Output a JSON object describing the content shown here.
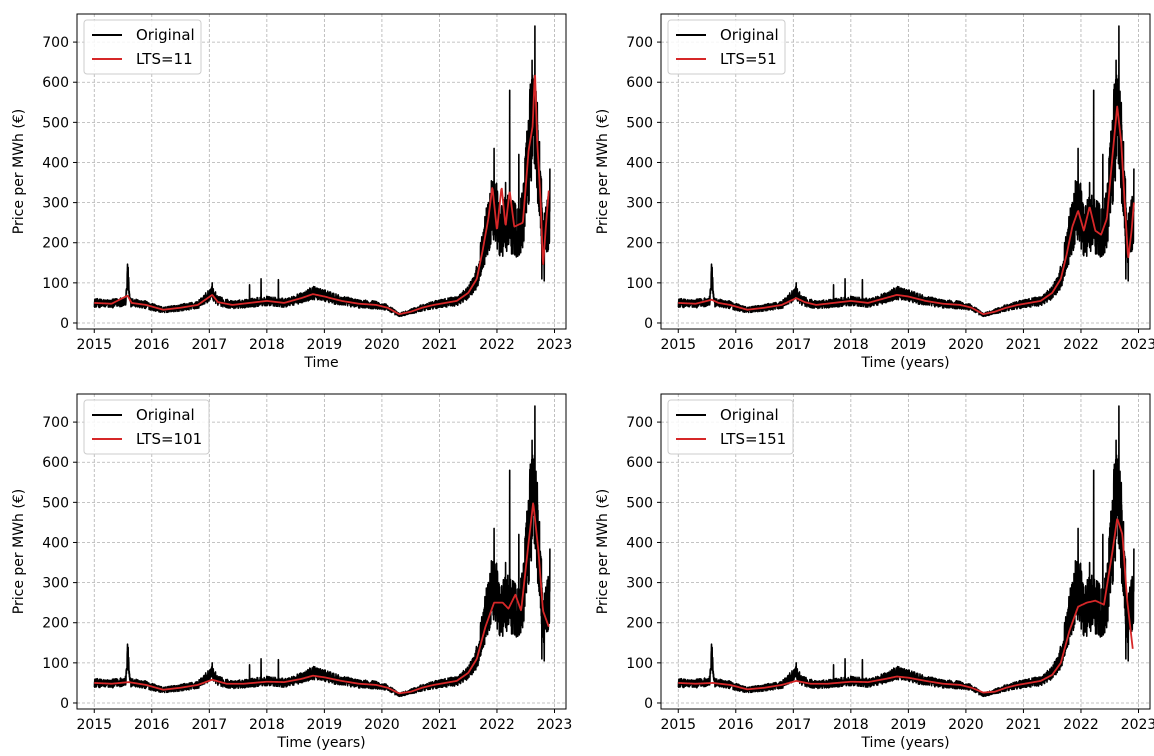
{
  "chart_data": [
    {
      "type": "line",
      "xlabel": "Time",
      "ylabel": "Price per MWh (€)",
      "xlim": [
        2014.7,
        2023.2
      ],
      "ylim": [
        -15,
        770
      ],
      "xticks": [
        "2015",
        "2016",
        "2017",
        "2018",
        "2019",
        "2020",
        "2021",
        "2022",
        "2023"
      ],
      "yticks": [
        "0",
        "100",
        "200",
        "300",
        "400",
        "500",
        "600",
        "700"
      ],
      "grid": true,
      "legend_position": "top-left",
      "series": [
        {
          "name": "Original",
          "color": "#000000"
        },
        {
          "name": "LTS=11",
          "color": "#d62728"
        }
      ]
    },
    {
      "type": "line",
      "xlabel": "Time (years)",
      "ylabel": "Price per MWh (€)",
      "xlim": [
        2014.7,
        2023.2
      ],
      "ylim": [
        -15,
        770
      ],
      "xticks": [
        "2015",
        "2016",
        "2017",
        "2018",
        "2019",
        "2020",
        "2021",
        "2022",
        "2023"
      ],
      "yticks": [
        "0",
        "100",
        "200",
        "300",
        "400",
        "500",
        "600",
        "700"
      ],
      "grid": true,
      "legend_position": "top-left",
      "series": [
        {
          "name": "Original",
          "color": "#000000"
        },
        {
          "name": "LTS=51",
          "color": "#d62728"
        }
      ]
    },
    {
      "type": "line",
      "xlabel": "Time (years)",
      "ylabel": "Price per MWh (€)",
      "xlim": [
        2014.7,
        2023.2
      ],
      "ylim": [
        -15,
        770
      ],
      "xticks": [
        "2015",
        "2016",
        "2017",
        "2018",
        "2019",
        "2020",
        "2021",
        "2022",
        "2023"
      ],
      "yticks": [
        "0",
        "100",
        "200",
        "300",
        "400",
        "500",
        "600",
        "700"
      ],
      "grid": true,
      "legend_position": "top-left",
      "series": [
        {
          "name": "Original",
          "color": "#000000"
        },
        {
          "name": "LTS=101",
          "color": "#d62728"
        }
      ]
    },
    {
      "type": "line",
      "xlabel": "Time (years)",
      "ylabel": "Price per MWh (€)",
      "xlim": [
        2014.7,
        2023.2
      ],
      "ylim": [
        -15,
        770
      ],
      "xticks": [
        "2015",
        "2016",
        "2017",
        "2018",
        "2019",
        "2020",
        "2021",
        "2022",
        "2023"
      ],
      "yticks": [
        "0",
        "100",
        "200",
        "300",
        "400",
        "500",
        "600",
        "700"
      ],
      "grid": true,
      "legend_position": "top-left",
      "series": [
        {
          "name": "Original",
          "color": "#000000"
        },
        {
          "name": "LTS=151",
          "color": "#d62728"
        }
      ]
    }
  ],
  "original_key_points": [
    [
      2015.0,
      50
    ],
    [
      2015.3,
      48
    ],
    [
      2015.55,
      55
    ],
    [
      2015.58,
      125
    ],
    [
      2015.62,
      52
    ],
    [
      2015.9,
      45
    ],
    [
      2016.2,
      32
    ],
    [
      2016.5,
      38
    ],
    [
      2016.8,
      45
    ],
    [
      2017.05,
      75
    ],
    [
      2017.15,
      55
    ],
    [
      2017.4,
      45
    ],
    [
      2017.7,
      50
    ],
    [
      2018.0,
      55
    ],
    [
      2018.3,
      50
    ],
    [
      2018.6,
      62
    ],
    [
      2018.8,
      75
    ],
    [
      2019.0,
      68
    ],
    [
      2019.3,
      55
    ],
    [
      2019.6,
      48
    ],
    [
      2019.9,
      45
    ],
    [
      2020.1,
      38
    ],
    [
      2020.3,
      20
    ],
    [
      2020.5,
      28
    ],
    [
      2020.7,
      38
    ],
    [
      2020.9,
      45
    ],
    [
      2021.1,
      50
    ],
    [
      2021.3,
      55
    ],
    [
      2021.5,
      75
    ],
    [
      2021.65,
      110
    ],
    [
      2021.75,
      180
    ],
    [
      2021.85,
      250
    ],
    [
      2021.95,
      300
    ],
    [
      2022.05,
      230
    ],
    [
      2022.2,
      250
    ],
    [
      2022.35,
      230
    ],
    [
      2022.45,
      260
    ],
    [
      2022.55,
      420
    ],
    [
      2022.62,
      520
    ],
    [
      2022.68,
      480
    ],
    [
      2022.75,
      350
    ],
    [
      2022.8,
      200
    ],
    [
      2022.85,
      230
    ],
    [
      2022.9,
      260
    ]
  ],
  "original_spikes": [
    [
      2015.58,
      125
    ],
    [
      2017.05,
      100
    ],
    [
      2017.7,
      95
    ],
    [
      2017.9,
      110
    ],
    [
      2018.2,
      108
    ],
    [
      2021.85,
      300
    ],
    [
      2021.95,
      435
    ],
    [
      2022.02,
      205
    ],
    [
      2022.15,
      350
    ],
    [
      2022.22,
      580
    ],
    [
      2022.3,
      200
    ],
    [
      2022.38,
      420
    ],
    [
      2022.6,
      560
    ],
    [
      2022.66,
      740
    ],
    [
      2022.72,
      420
    ],
    [
      2022.78,
      110
    ],
    [
      2022.92,
      385
    ],
    [
      2022.82,
      105
    ]
  ],
  "smooth_key_points": [
    [
      [
        2015.0,
        50
      ],
      [
        2015.3,
        48
      ],
      [
        2015.58,
        68
      ],
      [
        2015.65,
        50
      ],
      [
        2015.9,
        45
      ],
      [
        2016.2,
        33
      ],
      [
        2016.5,
        38
      ],
      [
        2016.8,
        45
      ],
      [
        2017.05,
        70
      ],
      [
        2017.15,
        52
      ],
      [
        2017.4,
        45
      ],
      [
        2017.7,
        50
      ],
      [
        2018.0,
        55
      ],
      [
        2018.3,
        50
      ],
      [
        2018.6,
        62
      ],
      [
        2018.8,
        72
      ],
      [
        2019.0,
        66
      ],
      [
        2019.3,
        55
      ],
      [
        2019.6,
        48
      ],
      [
        2019.9,
        45
      ],
      [
        2020.1,
        38
      ],
      [
        2020.3,
        22
      ],
      [
        2020.5,
        28
      ],
      [
        2020.7,
        38
      ],
      [
        2020.9,
        45
      ],
      [
        2021.1,
        50
      ],
      [
        2021.3,
        55
      ],
      [
        2021.5,
        75
      ],
      [
        2021.65,
        110
      ],
      [
        2021.75,
        180
      ],
      [
        2021.85,
        260
      ],
      [
        2021.92,
        340
      ],
      [
        2022.0,
        230
      ],
      [
        2022.08,
        340
      ],
      [
        2022.15,
        240
      ],
      [
        2022.22,
        330
      ],
      [
        2022.3,
        240
      ],
      [
        2022.45,
        250
      ],
      [
        2022.55,
        430
      ],
      [
        2022.62,
        490
      ],
      [
        2022.66,
        630
      ],
      [
        2022.7,
        450
      ],
      [
        2022.76,
        300
      ],
      [
        2022.8,
        140
      ],
      [
        2022.85,
        240
      ],
      [
        2022.9,
        330
      ]
    ],
    [
      [
        2015.0,
        50
      ],
      [
        2015.3,
        48
      ],
      [
        2015.58,
        58
      ],
      [
        2015.7,
        50
      ],
      [
        2015.9,
        45
      ],
      [
        2016.2,
        33
      ],
      [
        2016.5,
        38
      ],
      [
        2016.8,
        45
      ],
      [
        2017.05,
        62
      ],
      [
        2017.2,
        52
      ],
      [
        2017.4,
        45
      ],
      [
        2017.7,
        50
      ],
      [
        2018.0,
        55
      ],
      [
        2018.3,
        50
      ],
      [
        2018.6,
        62
      ],
      [
        2018.8,
        70
      ],
      [
        2019.0,
        66
      ],
      [
        2019.3,
        55
      ],
      [
        2019.6,
        48
      ],
      [
        2019.9,
        45
      ],
      [
        2020.1,
        38
      ],
      [
        2020.3,
        22
      ],
      [
        2020.5,
        28
      ],
      [
        2020.7,
        38
      ],
      [
        2020.9,
        45
      ],
      [
        2021.1,
        50
      ],
      [
        2021.3,
        55
      ],
      [
        2021.5,
        75
      ],
      [
        2021.65,
        110
      ],
      [
        2021.75,
        170
      ],
      [
        2021.85,
        240
      ],
      [
        2021.95,
        280
      ],
      [
        2022.05,
        230
      ],
      [
        2022.15,
        290
      ],
      [
        2022.25,
        230
      ],
      [
        2022.35,
        220
      ],
      [
        2022.45,
        260
      ],
      [
        2022.55,
        420
      ],
      [
        2022.63,
        540
      ],
      [
        2022.7,
        450
      ],
      [
        2022.76,
        300
      ],
      [
        2022.82,
        160
      ],
      [
        2022.88,
        230
      ],
      [
        2022.92,
        300
      ]
    ],
    [
      [
        2015.0,
        50
      ],
      [
        2015.3,
        48
      ],
      [
        2015.6,
        52
      ],
      [
        2015.9,
        45
      ],
      [
        2016.2,
        33
      ],
      [
        2016.5,
        38
      ],
      [
        2016.8,
        45
      ],
      [
        2017.05,
        58
      ],
      [
        2017.3,
        48
      ],
      [
        2017.6,
        48
      ],
      [
        2018.0,
        53
      ],
      [
        2018.3,
        52
      ],
      [
        2018.6,
        60
      ],
      [
        2018.8,
        68
      ],
      [
        2019.0,
        64
      ],
      [
        2019.3,
        55
      ],
      [
        2019.6,
        48
      ],
      [
        2019.9,
        45
      ],
      [
        2020.1,
        38
      ],
      [
        2020.3,
        24
      ],
      [
        2020.5,
        28
      ],
      [
        2020.7,
        38
      ],
      [
        2020.9,
        45
      ],
      [
        2021.1,
        50
      ],
      [
        2021.3,
        55
      ],
      [
        2021.5,
        75
      ],
      [
        2021.65,
        110
      ],
      [
        2021.8,
        190
      ],
      [
        2021.95,
        250
      ],
      [
        2022.1,
        250
      ],
      [
        2022.2,
        235
      ],
      [
        2022.32,
        270
      ],
      [
        2022.42,
        230
      ],
      [
        2022.55,
        400
      ],
      [
        2022.63,
        500
      ],
      [
        2022.72,
        380
      ],
      [
        2022.8,
        230
      ],
      [
        2022.9,
        190
      ]
    ],
    [
      [
        2015.0,
        50
      ],
      [
        2015.3,
        48
      ],
      [
        2015.6,
        50
      ],
      [
        2015.9,
        45
      ],
      [
        2016.2,
        34
      ],
      [
        2016.5,
        38
      ],
      [
        2016.8,
        45
      ],
      [
        2017.05,
        55
      ],
      [
        2017.3,
        48
      ],
      [
        2017.6,
        48
      ],
      [
        2018.0,
        53
      ],
      [
        2018.3,
        52
      ],
      [
        2018.6,
        60
      ],
      [
        2018.8,
        66
      ],
      [
        2019.0,
        63
      ],
      [
        2019.3,
        55
      ],
      [
        2019.6,
        48
      ],
      [
        2019.9,
        45
      ],
      [
        2020.1,
        38
      ],
      [
        2020.3,
        26
      ],
      [
        2020.5,
        28
      ],
      [
        2020.7,
        38
      ],
      [
        2020.9,
        45
      ],
      [
        2021.1,
        50
      ],
      [
        2021.3,
        55
      ],
      [
        2021.5,
        70
      ],
      [
        2021.65,
        100
      ],
      [
        2021.8,
        180
      ],
      [
        2021.95,
        240
      ],
      [
        2022.1,
        250
      ],
      [
        2022.25,
        255
      ],
      [
        2022.4,
        245
      ],
      [
        2022.55,
        380
      ],
      [
        2022.63,
        460
      ],
      [
        2022.72,
        420
      ],
      [
        2022.8,
        260
      ],
      [
        2022.9,
        135
      ]
    ]
  ]
}
